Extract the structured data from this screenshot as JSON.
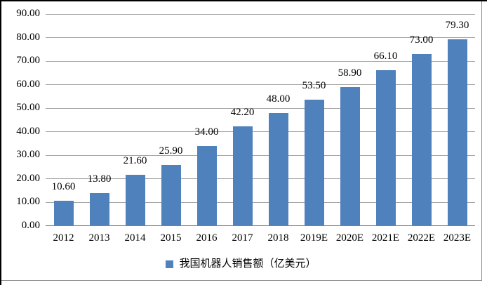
{
  "chart_data": {
    "type": "bar",
    "title": "",
    "xlabel": "",
    "ylabel": "",
    "categories": [
      "2012",
      "2013",
      "2014",
      "2015",
      "2016",
      "2017",
      "2018",
      "2019E",
      "2020E",
      "2021E",
      "2022E",
      "2023E"
    ],
    "values": [
      10.6,
      13.8,
      21.6,
      25.9,
      34.0,
      42.2,
      48.0,
      53.5,
      58.9,
      66.1,
      73.0,
      79.3
    ],
    "value_labels": [
      "10.60",
      "13.80",
      "21.60",
      "25.90",
      "34.00",
      "42.20",
      "48.00",
      "53.50",
      "58.90",
      "66.10",
      "73.00",
      "79.30"
    ],
    "series_name": "我国机器人销售额（亿美元）",
    "ylim": [
      0,
      90
    ],
    "ytick_step": 10,
    "ytick_labels": [
      "0.00",
      "10.00",
      "20.00",
      "30.00",
      "40.00",
      "50.00",
      "60.00",
      "70.00",
      "80.00",
      "90.00"
    ],
    "grid": true,
    "legend_position": "bottom",
    "colors": {
      "bar": "#4F81BD",
      "gridline": "#A6A6A6",
      "axis": "#808080",
      "frame": "#8C8C8C",
      "text": "#000000",
      "background": "#FFFFFF"
    }
  }
}
